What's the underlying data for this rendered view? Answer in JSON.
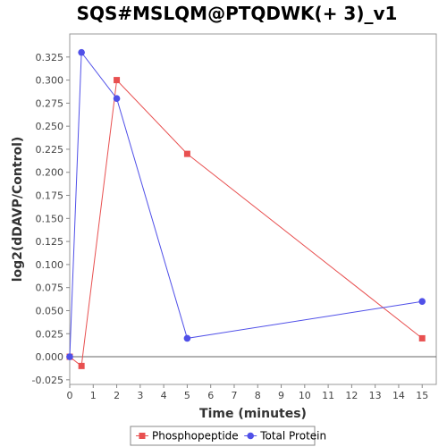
{
  "chart_data": {
    "type": "line",
    "title": "SQS#MSLQM@PTQDWK(+ 3)_v1",
    "xlabel": "Time (minutes)",
    "ylabel": "log2(dDAVP/Control)",
    "xlim": [
      0,
      15.6
    ],
    "ylim": [
      -0.03,
      0.35
    ],
    "xticks": [
      0,
      1,
      2,
      3,
      4,
      5,
      6,
      7,
      8,
      9,
      10,
      11,
      12,
      13,
      14,
      15
    ],
    "xtick_labels": [
      "0",
      "1",
      "2",
      "3",
      "4",
      "5",
      "6",
      "7",
      "8",
      "9",
      "10",
      "11",
      "12",
      "13",
      "14",
      "15"
    ],
    "yticks": [
      -0.025,
      0,
      0.025,
      0.05,
      0.075,
      0.1,
      0.125,
      0.15,
      0.175,
      0.2,
      0.225,
      0.25,
      0.275,
      0.3,
      0.325
    ],
    "ytick_labels": [
      "-0.025",
      "0.000",
      "0.025",
      "0.050",
      "0.075",
      "0.100",
      "0.125",
      "0.150",
      "0.175",
      "0.200",
      "0.225",
      "0.250",
      "0.275",
      "0.300",
      "0.325"
    ],
    "grid": false,
    "zero_line": true,
    "legend_position": "bottom",
    "series": [
      {
        "name": "Phosphopeptide",
        "color": "#e85050",
        "marker": "square",
        "x": [
          0,
          0.5,
          2,
          5,
          15
        ],
        "y": [
          0.0,
          -0.01,
          0.3,
          0.22,
          0.02
        ]
      },
      {
        "name": "Total Protein",
        "color": "#5050e8",
        "marker": "circle",
        "x": [
          0,
          0.5,
          2,
          5,
          15
        ],
        "y": [
          0.0,
          0.33,
          0.28,
          0.02,
          0.06
        ]
      }
    ]
  }
}
